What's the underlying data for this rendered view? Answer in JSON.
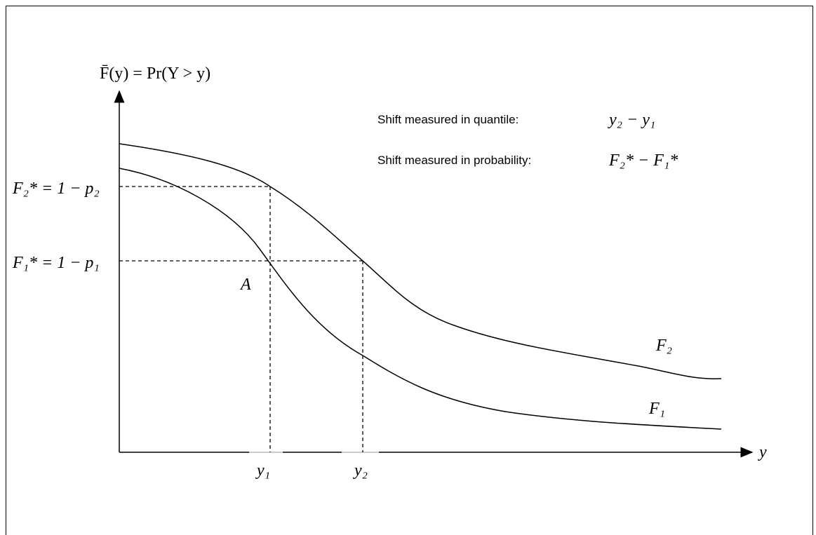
{
  "axis_label_y": "F̄(y) = Pr(Y > y)",
  "axis_label_x": "y",
  "legend": {
    "quantile_label": "Shift measured in quantile:",
    "quantile_expr": "y₂ − y₁",
    "probability_label": "Shift measured in probability:",
    "probability_expr": "F₂* − F₁*"
  },
  "levels": {
    "upper": "F₂* = 1 − p₂",
    "lower": "F₁* = 1 − p₁"
  },
  "point_label": "A",
  "curves": {
    "upper": "F₂",
    "lower": "F₁"
  },
  "quantiles": {
    "first": "y₁",
    "second": "y₂"
  }
}
